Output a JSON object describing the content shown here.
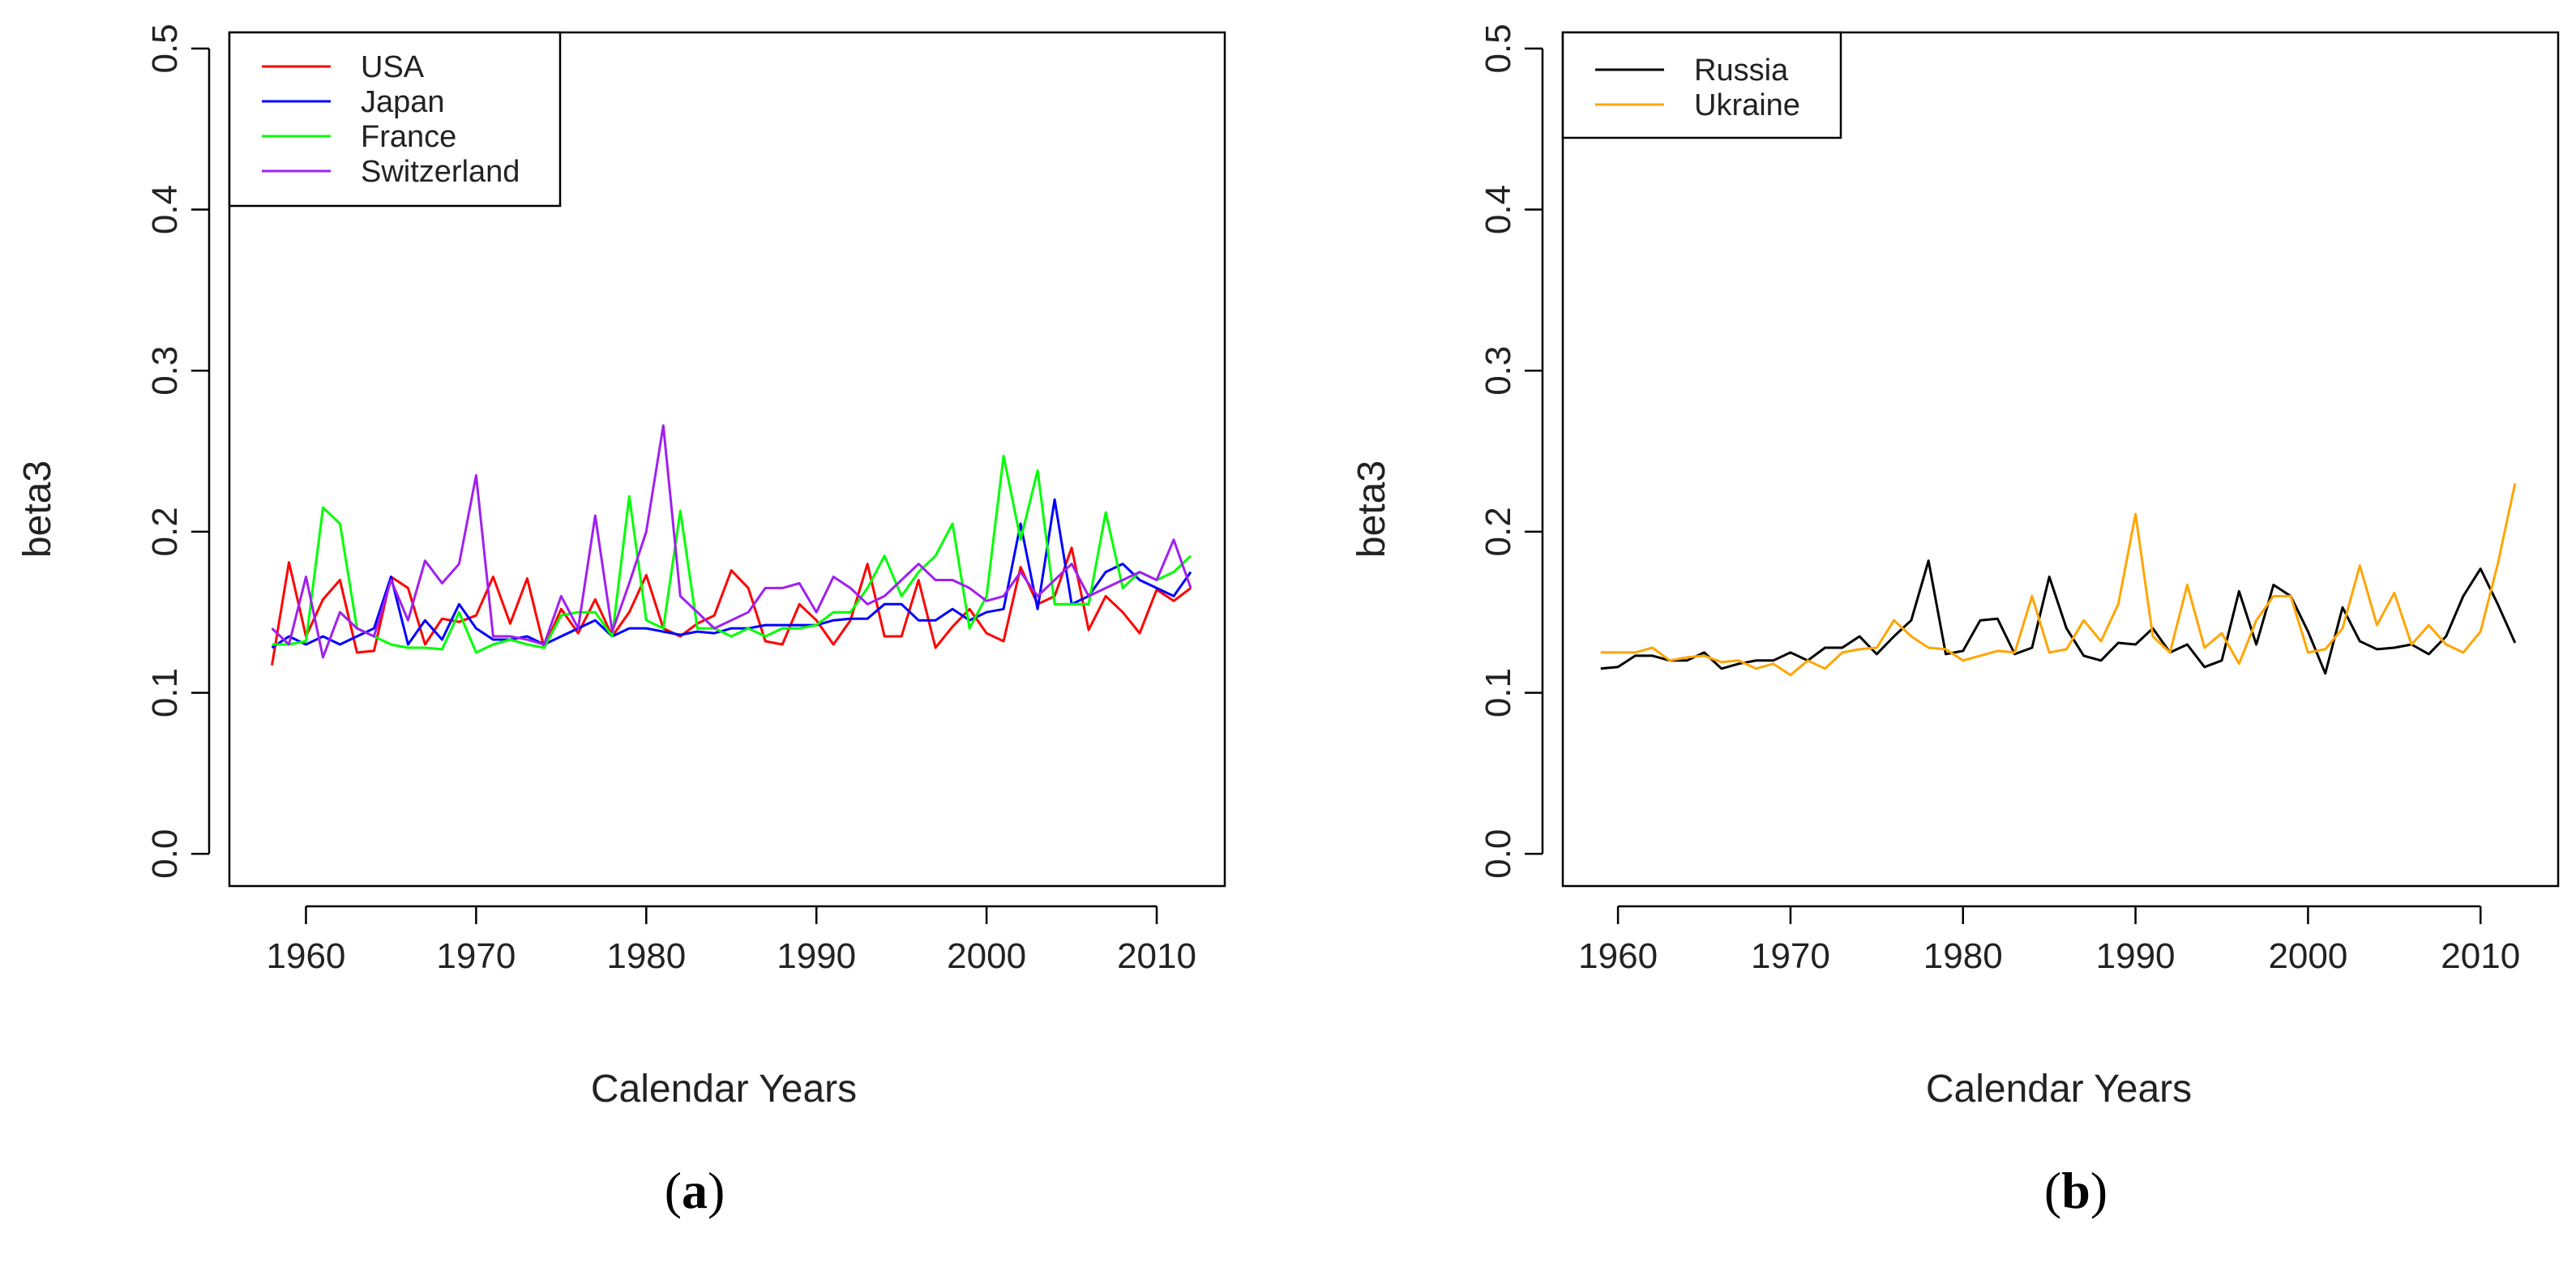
{
  "chart_data": [
    {
      "panel_label": "(a)",
      "panel_letter": "a",
      "type": "line",
      "title": "",
      "xlabel": "Calendar Years",
      "ylabel": "beta3",
      "xlim": [
        1955.5,
        2014
      ],
      "ylim": [
        -0.02,
        0.51
      ],
      "x_ticks": [
        1960,
        1970,
        1980,
        1990,
        2000,
        2010
      ],
      "y_ticks": [
        0.0,
        0.1,
        0.2,
        0.3,
        0.4,
        0.5
      ],
      "y_tick_labels": [
        "0.0",
        "0.1",
        "0.2",
        "0.3",
        "0.4",
        "0.5"
      ],
      "grid": false,
      "legend_position": "top-left",
      "x": [
        1958,
        1959,
        1960,
        1961,
        1962,
        1963,
        1964,
        1965,
        1966,
        1967,
        1968,
        1969,
        1970,
        1971,
        1972,
        1973,
        1974,
        1975,
        1976,
        1977,
        1978,
        1979,
        1980,
        1981,
        1982,
        1983,
        1984,
        1985,
        1986,
        1987,
        1988,
        1989,
        1990,
        1991,
        1992,
        1993,
        1994,
        1995,
        1996,
        1997,
        1998,
        1999,
        2000,
        2001,
        2002,
        2003,
        2004,
        2005,
        2006,
        2007,
        2008,
        2009,
        2010,
        2011,
        2012
      ],
      "series": [
        {
          "name": "USA",
          "color": "#ff0000",
          "values": [
            0.117,
            0.181,
            0.135,
            0.158,
            0.17,
            0.125,
            0.126,
            0.172,
            0.165,
            0.13,
            0.146,
            0.144,
            0.148,
            0.172,
            0.143,
            0.171,
            0.128,
            0.152,
            0.137,
            0.158,
            0.135,
            0.15,
            0.173,
            0.14,
            0.135,
            0.143,
            0.148,
            0.176,
            0.165,
            0.132,
            0.13,
            0.155,
            0.145,
            0.13,
            0.145,
            0.18,
            0.135,
            0.135,
            0.17,
            0.128,
            0.141,
            0.152,
            0.137,
            0.132,
            0.178,
            0.155,
            0.16,
            0.19,
            0.139,
            0.16,
            0.15,
            0.137,
            0.164,
            0.157,
            0.165
          ]
        },
        {
          "name": "Japan",
          "color": "#0000ff",
          "values": [
            0.128,
            0.135,
            0.13,
            0.135,
            0.13,
            0.135,
            0.14,
            0.172,
            0.13,
            0.145,
            0.133,
            0.155,
            0.14,
            0.133,
            0.133,
            0.135,
            0.13,
            0.135,
            0.14,
            0.145,
            0.135,
            0.14,
            0.14,
            0.138,
            0.136,
            0.138,
            0.137,
            0.14,
            0.14,
            0.142,
            0.142,
            0.142,
            0.142,
            0.145,
            0.146,
            0.146,
            0.155,
            0.155,
            0.145,
            0.145,
            0.152,
            0.145,
            0.15,
            0.152,
            0.205,
            0.152,
            0.22,
            0.155,
            0.16,
            0.175,
            0.18,
            0.17,
            0.165,
            0.16,
            0.175
          ]
        },
        {
          "name": "France",
          "color": "#00ff00",
          "values": [
            0.13,
            0.13,
            0.132,
            0.215,
            0.205,
            0.14,
            0.135,
            0.13,
            0.128,
            0.128,
            0.127,
            0.15,
            0.125,
            0.13,
            0.133,
            0.13,
            0.128,
            0.148,
            0.15,
            0.15,
            0.135,
            0.222,
            0.145,
            0.14,
            0.213,
            0.14,
            0.14,
            0.135,
            0.14,
            0.135,
            0.14,
            0.14,
            0.142,
            0.15,
            0.15,
            0.165,
            0.185,
            0.16,
            0.175,
            0.185,
            0.205,
            0.14,
            0.16,
            0.247,
            0.195,
            0.238,
            0.155,
            0.155,
            0.155,
            0.212,
            0.165,
            0.175,
            0.17,
            0.175,
            0.185
          ]
        },
        {
          "name": "Switzerland",
          "color": "#a020f0",
          "values": [
            0.14,
            0.13,
            0.172,
            0.122,
            0.15,
            0.14,
            0.135,
            0.17,
            0.145,
            0.182,
            0.168,
            0.18,
            0.235,
            0.135,
            0.135,
            0.133,
            0.13,
            0.16,
            0.14,
            0.21,
            0.138,
            0.168,
            0.2,
            0.266,
            0.16,
            0.15,
            0.14,
            0.145,
            0.15,
            0.165,
            0.165,
            0.168,
            0.15,
            0.172,
            0.165,
            0.155,
            0.16,
            0.17,
            0.18,
            0.17,
            0.17,
            0.165,
            0.157,
            0.16,
            0.175,
            0.16,
            0.17,
            0.18,
            0.16,
            0.165,
            0.17,
            0.175,
            0.17,
            0.195,
            0.165
          ]
        }
      ]
    },
    {
      "panel_label": "(b)",
      "panel_letter": "b",
      "type": "line",
      "title": "",
      "xlabel": "Calendar Years",
      "ylabel": "beta3",
      "xlim": [
        1956.8,
        2014.5
      ],
      "ylim": [
        -0.02,
        0.51
      ],
      "x_ticks": [
        1960,
        1970,
        1980,
        1990,
        2000,
        2010
      ],
      "y_ticks": [
        0.0,
        0.1,
        0.2,
        0.3,
        0.4,
        0.5
      ],
      "y_tick_labels": [
        "0.0",
        "0.1",
        "0.2",
        "0.3",
        "0.4",
        "0.5"
      ],
      "grid": false,
      "legend_position": "top-left",
      "x": [
        1959,
        1960,
        1961,
        1962,
        1963,
        1964,
        1965,
        1966,
        1967,
        1968,
        1969,
        1970,
        1971,
        1972,
        1973,
        1974,
        1975,
        1976,
        1977,
        1978,
        1979,
        1980,
        1981,
        1982,
        1983,
        1984,
        1985,
        1986,
        1987,
        1988,
        1989,
        1990,
        1991,
        1992,
        1993,
        1994,
        1995,
        1996,
        1997,
        1998,
        1999,
        2000,
        2001,
        2002,
        2003,
        2004,
        2005,
        2006,
        2007,
        2008,
        2009,
        2010,
        2011,
        2012
      ],
      "series": [
        {
          "name": "Russia",
          "color": "#000000",
          "values": [
            0.115,
            0.116,
            0.123,
            0.123,
            0.12,
            0.12,
            0.125,
            0.115,
            0.118,
            0.12,
            0.12,
            0.125,
            0.12,
            0.128,
            0.128,
            0.135,
            0.124,
            0.135,
            0.145,
            0.182,
            0.124,
            0.126,
            0.145,
            0.146,
            0.124,
            0.128,
            0.172,
            0.14,
            0.123,
            0.12,
            0.131,
            0.13,
            0.14,
            0.125,
            0.13,
            0.116,
            0.12,
            0.163,
            0.13,
            0.167,
            0.16,
            0.138,
            0.112,
            0.153,
            0.132,
            0.127,
            0.128,
            0.13,
            0.124,
            0.135,
            0.16,
            0.177,
            0.155,
            0.131
          ]
        },
        {
          "name": "Ukraine",
          "color": "#ffa500",
          "values": [
            0.125,
            0.125,
            0.125,
            0.128,
            0.12,
            0.122,
            0.123,
            0.119,
            0.12,
            0.115,
            0.118,
            0.111,
            0.12,
            0.115,
            0.125,
            0.127,
            0.128,
            0.145,
            0.135,
            0.128,
            0.127,
            0.12,
            0.123,
            0.126,
            0.125,
            0.16,
            0.125,
            0.127,
            0.145,
            0.132,
            0.155,
            0.211,
            0.135,
            0.125,
            0.167,
            0.128,
            0.137,
            0.118,
            0.145,
            0.16,
            0.16,
            0.125,
            0.127,
            0.14,
            0.179,
            0.142,
            0.162,
            0.13,
            0.142,
            0.13,
            0.125,
            0.138,
            0.18,
            0.23
          ]
        }
      ]
    }
  ]
}
